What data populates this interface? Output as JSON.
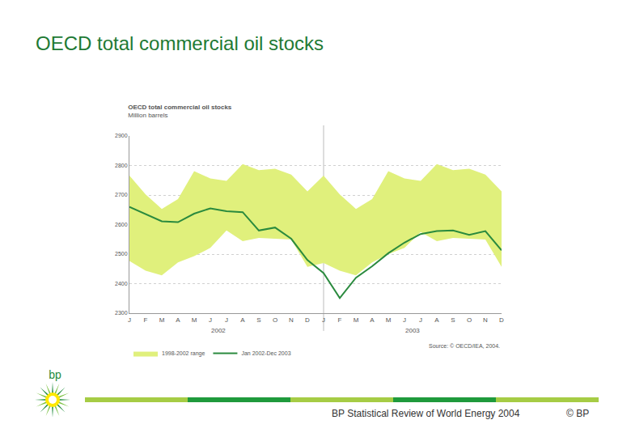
{
  "page": {
    "title": "OECD total commercial oil stocks",
    "logo": "bp",
    "footer": "BP Statistical Review of World Energy 2004",
    "copyright": "© BP"
  },
  "chart_data": {
    "type": "line",
    "title": "OECD total commercial oil stocks",
    "subtitle": "Million barrels",
    "source": "Source: © OECD/IEA, 2004.",
    "categories": [
      "J",
      "F",
      "M",
      "A",
      "M",
      "J",
      "J",
      "A",
      "S",
      "O",
      "N",
      "D",
      "J",
      "F",
      "M",
      "A",
      "M",
      "J",
      "J",
      "A",
      "S",
      "O",
      "N",
      "D"
    ],
    "category_groups": [
      {
        "label": "2002",
        "count": 12
      },
      {
        "label": "2003",
        "count": 12
      }
    ],
    "series": [
      {
        "name": "Jan 2002-Dec 2003",
        "type": "line",
        "color": "#2a8a3e",
        "values": [
          2660,
          2635,
          2611,
          2608,
          2637,
          2655,
          2645,
          2642,
          2580,
          2590,
          2552,
          2480,
          2436,
          2351,
          2420,
          2459,
          2503,
          2539,
          2568,
          2578,
          2580,
          2565,
          2578,
          2513
        ]
      },
      {
        "name": "1998-2002 range",
        "type": "band",
        "color": "#e0f07c",
        "low": [
          2477,
          2444,
          2428,
          2472,
          2493,
          2521,
          2580,
          2544,
          2555,
          2552,
          2549,
          2457,
          2470,
          2444,
          2428,
          2472,
          2500,
          2521,
          2575,
          2544,
          2555,
          2552,
          2549,
          2457
        ],
        "high": [
          2766,
          2702,
          2653,
          2686,
          2781,
          2756,
          2748,
          2805,
          2784,
          2789,
          2769,
          2712,
          2766,
          2702,
          2653,
          2686,
          2781,
          2756,
          2748,
          2805,
          2784,
          2789,
          2769,
          2712
        ]
      }
    ],
    "ylim": [
      2300,
      2900
    ],
    "yticks": [
      2300,
      2400,
      2500,
      2600,
      2700,
      2800,
      2900
    ],
    "grid": true,
    "legend": "bottom"
  }
}
